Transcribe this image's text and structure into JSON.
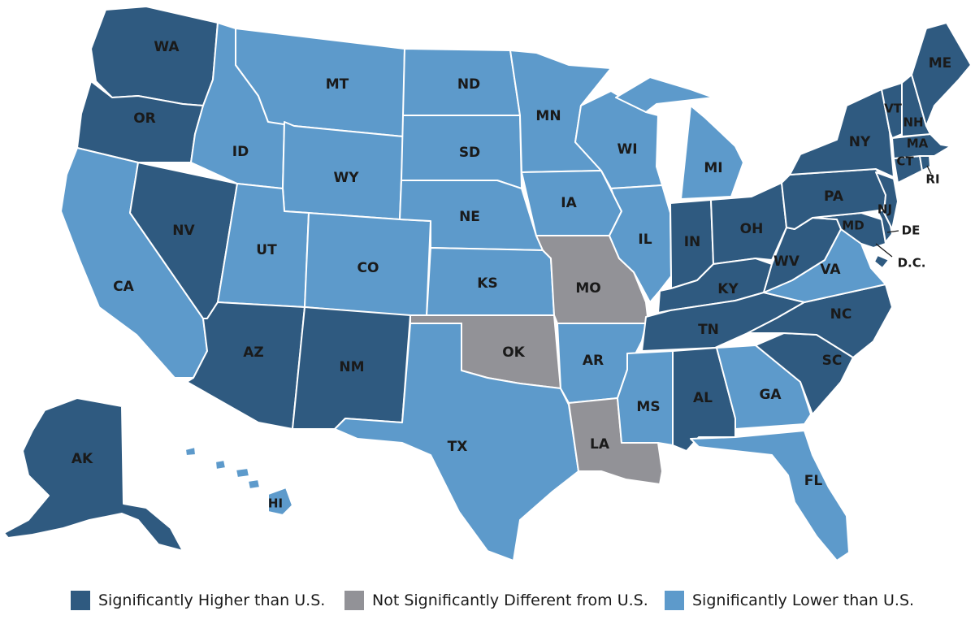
{
  "colors": {
    "higher": "#2f5a80",
    "not_different": "#929297",
    "lower": "#5d9acb"
  },
  "legend": {
    "higher": "Significantly Higher than U.S.",
    "not_different": "Not Significantly Different from U.S.",
    "lower": "Significantly Lower than U.S."
  },
  "states": {
    "WA": {
      "label": "WA",
      "category": "higher"
    },
    "OR": {
      "label": "OR",
      "category": "higher"
    },
    "CA": {
      "label": "CA",
      "category": "lower"
    },
    "NV": {
      "label": "NV",
      "category": "higher"
    },
    "ID": {
      "label": "ID",
      "category": "lower"
    },
    "MT": {
      "label": "MT",
      "category": "lower"
    },
    "WY": {
      "label": "WY",
      "category": "lower"
    },
    "UT": {
      "label": "UT",
      "category": "lower"
    },
    "AZ": {
      "label": "AZ",
      "category": "higher"
    },
    "CO": {
      "label": "CO",
      "category": "lower"
    },
    "NM": {
      "label": "NM",
      "category": "higher"
    },
    "ND": {
      "label": "ND",
      "category": "lower"
    },
    "SD": {
      "label": "SD",
      "category": "lower"
    },
    "NE": {
      "label": "NE",
      "category": "lower"
    },
    "KS": {
      "label": "KS",
      "category": "lower"
    },
    "OK": {
      "label": "OK",
      "category": "not_different"
    },
    "TX": {
      "label": "TX",
      "category": "lower"
    },
    "MN": {
      "label": "MN",
      "category": "lower"
    },
    "IA": {
      "label": "IA",
      "category": "lower"
    },
    "MO": {
      "label": "MO",
      "category": "not_different"
    },
    "AR": {
      "label": "AR",
      "category": "lower"
    },
    "LA": {
      "label": "LA",
      "category": "not_different"
    },
    "WI": {
      "label": "WI",
      "category": "lower"
    },
    "IL": {
      "label": "IL",
      "category": "lower"
    },
    "MI": {
      "label": "MI",
      "category": "lower"
    },
    "IN": {
      "label": "IN",
      "category": "higher"
    },
    "OH": {
      "label": "OH",
      "category": "higher"
    },
    "KY": {
      "label": "KY",
      "category": "higher"
    },
    "TN": {
      "label": "TN",
      "category": "higher"
    },
    "MS": {
      "label": "MS",
      "category": "lower"
    },
    "AL": {
      "label": "AL",
      "category": "higher"
    },
    "GA": {
      "label": "GA",
      "category": "lower"
    },
    "FL": {
      "label": "FL",
      "category": "lower"
    },
    "SC": {
      "label": "SC",
      "category": "higher"
    },
    "NC": {
      "label": "NC",
      "category": "higher"
    },
    "VA": {
      "label": "VA",
      "category": "lower"
    },
    "WV": {
      "label": "WV",
      "category": "higher"
    },
    "MD": {
      "label": "MD",
      "category": "higher"
    },
    "DE": {
      "label": "DE",
      "category": "higher"
    },
    "DC": {
      "label": "D.C.",
      "category": "higher"
    },
    "PA": {
      "label": "PA",
      "category": "higher"
    },
    "NJ": {
      "label": "NJ",
      "category": "higher"
    },
    "NY": {
      "label": "NY",
      "category": "higher"
    },
    "CT": {
      "label": "CT",
      "category": "higher"
    },
    "RI": {
      "label": "RI",
      "category": "higher"
    },
    "MA": {
      "label": "MA",
      "category": "higher"
    },
    "VT": {
      "label": "VT",
      "category": "higher"
    },
    "NH": {
      "label": "NH",
      "category": "higher"
    },
    "ME": {
      "label": "ME",
      "category": "higher"
    },
    "AK": {
      "label": "AK",
      "category": "higher"
    },
    "HI": {
      "label": "HI",
      "category": "lower"
    }
  }
}
